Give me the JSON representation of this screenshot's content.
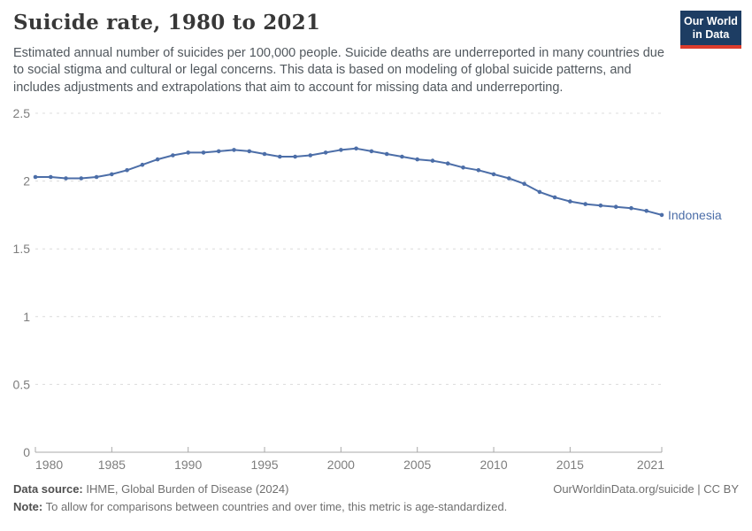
{
  "header": {
    "title": "Suicide rate, 1980 to 2021",
    "subtitle": "Estimated annual number of suicides per 100,000 people. Suicide deaths are underreported in many countries due to social stigma and cultural or legal concerns. This data is based on modeling of global suicide patterns, and includes adjustments and extrapolations that aim to account for missing data and underreporting.",
    "logo": {
      "line1": "Our World",
      "line2": "in Data",
      "bg_color": "#1d3d63",
      "stripe_color": "#dc3c2c"
    }
  },
  "chart_data": {
    "type": "line",
    "title": "Suicide rate, 1980 to 2021",
    "unit": "suicides per 100,000 people",
    "x": [
      1980,
      1981,
      1982,
      1983,
      1984,
      1985,
      1986,
      1987,
      1988,
      1989,
      1990,
      1991,
      1992,
      1993,
      1994,
      1995,
      1996,
      1997,
      1998,
      1999,
      2000,
      2001,
      2002,
      2003,
      2004,
      2005,
      2006,
      2007,
      2008,
      2009,
      2010,
      2011,
      2012,
      2013,
      2014,
      2015,
      2016,
      2017,
      2018,
      2019,
      2020,
      2021
    ],
    "series": [
      {
        "name": "Indonesia",
        "color": "#4C6EA8",
        "values": [
          2.03,
          2.03,
          2.02,
          2.02,
          2.03,
          2.05,
          2.08,
          2.12,
          2.16,
          2.19,
          2.21,
          2.21,
          2.22,
          2.23,
          2.22,
          2.2,
          2.18,
          2.18,
          2.19,
          2.21,
          2.23,
          2.24,
          2.22,
          2.2,
          2.18,
          2.16,
          2.15,
          2.13,
          2.1,
          2.08,
          2.05,
          2.02,
          1.98,
          1.92,
          1.88,
          1.85,
          1.83,
          1.82,
          1.81,
          1.8,
          1.78,
          1.75
        ]
      }
    ],
    "ylim": [
      0,
      2.5
    ],
    "yticks": [
      0,
      0.5,
      1,
      1.5,
      2,
      2.5
    ],
    "ytick_labels": [
      "0",
      "0.5",
      "1",
      "1.5",
      "2",
      "2.5"
    ],
    "xticks": [
      1980,
      1985,
      1990,
      1995,
      2000,
      2005,
      2010,
      2015,
      2021
    ],
    "grid": "horizontal-dashed",
    "legend": "end-of-line-label",
    "axis_color": "#a8a8a8",
    "grid_color": "#dcdcdc",
    "tick_label_color": "#7d7d7d"
  },
  "footer": {
    "source_label": "Data source:",
    "source_text": " IHME, Global Burden of Disease (2024)",
    "right_text": "OurWorldinData.org/suicide | CC BY",
    "note_label": "Note:",
    "note_text": " To allow for comparisons between countries and over time, this metric is age-standardized."
  }
}
